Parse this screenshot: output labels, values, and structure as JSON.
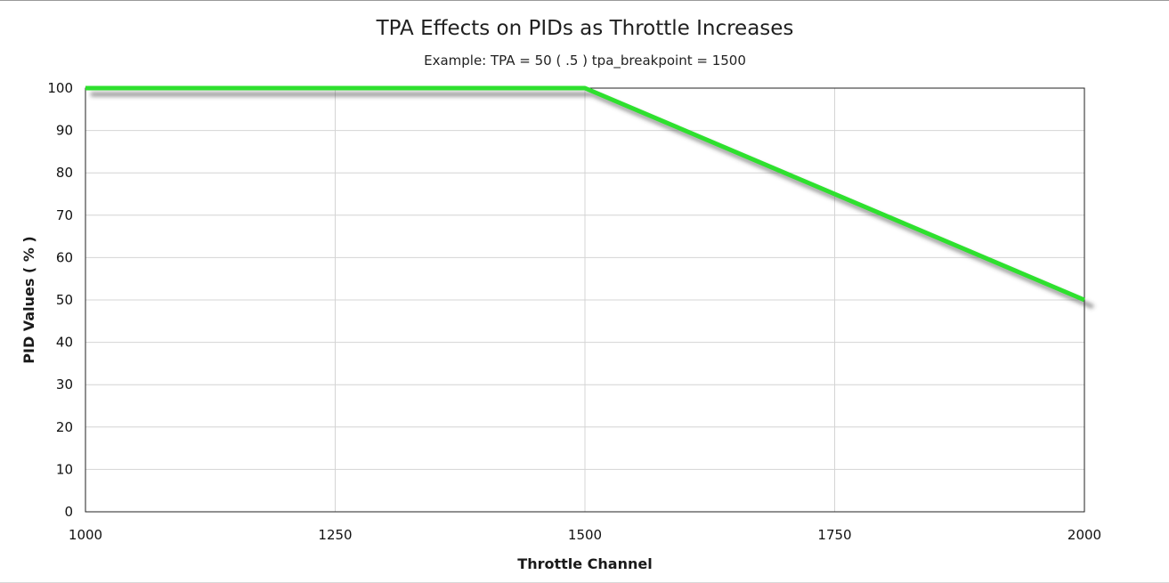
{
  "chart_data": {
    "type": "line",
    "title": "TPA Effects on PIDs as Throttle Increases",
    "subtitle": "Example:  TPA = 50  ( .5 )  tpa_breakpoint = 1500",
    "xlabel": "Throttle Channel",
    "ylabel": "PID Values  ( % )",
    "xlim": [
      1000,
      2000
    ],
    "ylim": [
      0,
      100
    ],
    "xticks": [
      1000,
      1250,
      1500,
      1750,
      2000
    ],
    "yticks": [
      0,
      10,
      20,
      30,
      40,
      50,
      60,
      70,
      80,
      90,
      100
    ],
    "grid": true,
    "legend": "none",
    "series": [
      {
        "x": [
          1000,
          1500,
          2000
        ],
        "y": [
          100,
          100,
          50
        ],
        "color": "#2ee02e"
      }
    ]
  }
}
